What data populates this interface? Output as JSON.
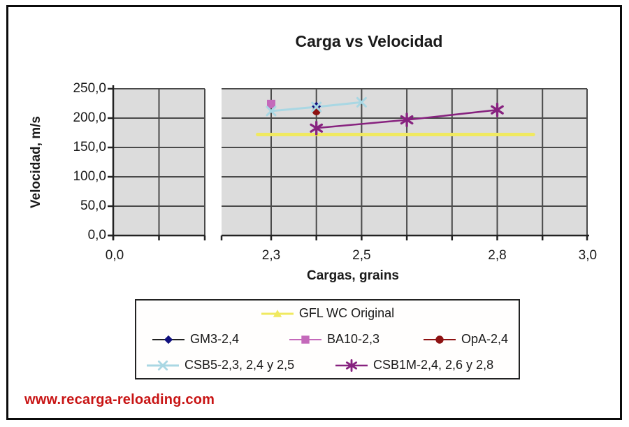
{
  "title": "Carga vs Velocidad",
  "watermark": {
    "text": "www.recarga-reloading.com",
    "color": "#C81414"
  },
  "axes": {
    "x_label": "Cargas, grains",
    "y_label": "Velocidad, m/s",
    "x_ticks": [
      {
        "label": "0,0",
        "g": 0.0
      },
      {
        "label": "2,3",
        "g": 2.3
      },
      {
        "label": "2,5",
        "g": 2.5
      },
      {
        "label": "2,8",
        "g": 2.8
      },
      {
        "label": "3,0",
        "g": 3.0
      }
    ],
    "y_ticks": [
      {
        "label": "0,0",
        "v": 0
      },
      {
        "label": "50,0",
        "v": 50
      },
      {
        "label": "100,0",
        "v": 100
      },
      {
        "label": "150,0",
        "v": 150
      },
      {
        "label": "200,0",
        "v": 200
      },
      {
        "label": "250,0",
        "v": 250
      }
    ]
  },
  "chart_data": {
    "type": "line",
    "title": "Carga vs Velocidad",
    "xlabel": "Cargas, grains",
    "ylabel": "Velocidad, m/s",
    "xlim": [
      0.0,
      3.0
    ],
    "ylim": [
      0.0,
      250.0
    ],
    "x_axis_break": [
      0.15,
      2.2
    ],
    "x_gridline_step": 0.1,
    "y_gridline_step": 50,
    "grid": true,
    "legend_position": "bottom",
    "plot_bg": "#DCDCDC",
    "gridline_color": "#4A4A4A",
    "axis_color": "#222222",
    "series": [
      {
        "id": "gfl",
        "name": "GFL WC Original",
        "color": "#F0E960",
        "marker": "triangle",
        "line_width": 5,
        "show_point_markers": false,
        "x": [
          2.27,
          2.88
        ],
        "values": [
          172,
          172
        ]
      },
      {
        "id": "gm3",
        "name": "GM3-2,4",
        "color": "#10107E",
        "legend_line_color": "#222222",
        "marker": "diamond",
        "line_width": 2,
        "x": [
          2.4
        ],
        "values": [
          220
        ]
      },
      {
        "id": "ba10",
        "name": "BA10-2,3",
        "color": "#C469BA",
        "marker": "square",
        "line_width": 2,
        "x": [
          2.3
        ],
        "values": [
          224
        ]
      },
      {
        "id": "opa",
        "name": "OpA-2,4",
        "color": "#8E1212",
        "marker": "circle",
        "line_width": 2,
        "x": [
          2.4
        ],
        "values": [
          212
        ]
      },
      {
        "id": "csb5",
        "name": "CSB5-2,3, 2,4 y 2,5",
        "color": "#A9D7E3",
        "marker": "x",
        "line_width": 3,
        "x": [
          2.3,
          2.4,
          2.5
        ],
        "values": [
          212,
          219,
          227
        ]
      },
      {
        "id": "csb1m",
        "name": "CSB1M-2,4, 2,6 y 2,8",
        "color": "#87227F",
        "marker": "asterisk",
        "line_width": 2.5,
        "x": [
          2.4,
          2.6,
          2.8
        ],
        "values": [
          183,
          197,
          214
        ]
      }
    ],
    "legend_rows": [
      [
        "gfl"
      ],
      [
        "gm3",
        "ba10",
        "opa"
      ],
      [
        "csb5",
        "csb1m"
      ]
    ]
  }
}
